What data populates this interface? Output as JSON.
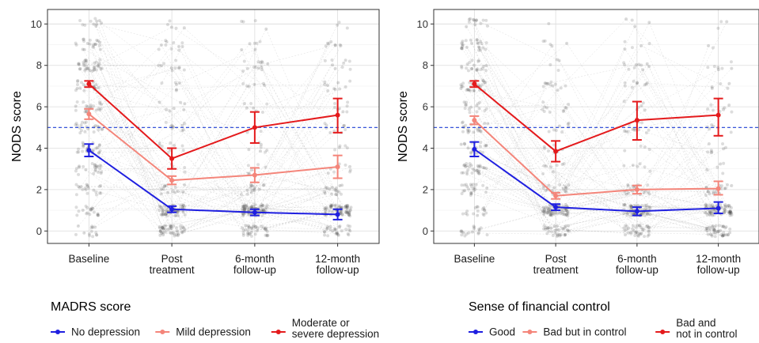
{
  "chart_data": [
    {
      "type": "line",
      "ylabel": "NODS score",
      "xlabel": "",
      "categories": [
        "Baseline",
        "Post\ntreatment",
        "6-month\nfollow-up",
        "12-month\nfollow-up"
      ],
      "ylim": [
        -0.6,
        10.7
      ],
      "yticks": [
        0,
        2,
        4,
        6,
        8,
        10
      ],
      "grid": true,
      "reference_line": {
        "y": 5,
        "style": "dashed",
        "color": "#1f3fd6"
      },
      "legend": {
        "title": "MADRS score",
        "position": "bottom"
      },
      "series": [
        {
          "name": "No depression",
          "color": "#1f1fe0",
          "values": [
            3.9,
            1.05,
            0.9,
            0.8
          ],
          "err_low": [
            3.6,
            0.9,
            0.75,
            0.55
          ],
          "err_high": [
            4.2,
            1.2,
            1.05,
            1.05
          ]
        },
        {
          "name": "Mild depression",
          "color": "#f4857a",
          "values": [
            5.65,
            2.45,
            2.7,
            3.1
          ],
          "err_low": [
            5.4,
            2.25,
            2.35,
            2.55
          ],
          "err_high": [
            5.9,
            2.65,
            3.05,
            3.65
          ]
        },
        {
          "name": "Moderate or\nsevere depression",
          "color": "#e41a1c",
          "values": [
            7.1,
            3.5,
            5.0,
            5.6
          ],
          "err_low": [
            6.95,
            3.0,
            4.25,
            4.75
          ],
          "err_high": [
            7.25,
            4.0,
            5.75,
            6.4
          ]
        }
      ]
    },
    {
      "type": "line",
      "ylabel": "NODS score",
      "xlabel": "",
      "categories": [
        "Baseline",
        "Post\ntreatment",
        "6-month\nfollow-up",
        "12-month\nfollow-up"
      ],
      "ylim": [
        -0.6,
        10.7
      ],
      "yticks": [
        0,
        2,
        4,
        6,
        8,
        10
      ],
      "grid": true,
      "reference_line": {
        "y": 5,
        "style": "dashed",
        "color": "#1f3fd6"
      },
      "legend": {
        "title": "Sense of financial control",
        "position": "bottom"
      },
      "series": [
        {
          "name": "Good",
          "color": "#1f1fe0",
          "values": [
            3.95,
            1.15,
            0.95,
            1.1
          ],
          "err_low": [
            3.6,
            1.0,
            0.75,
            0.85
          ],
          "err_high": [
            4.3,
            1.3,
            1.15,
            1.4
          ]
        },
        {
          "name": "Bad but in control",
          "color": "#f4857a",
          "values": [
            5.35,
            1.7,
            2.0,
            2.05
          ],
          "err_low": [
            5.15,
            1.55,
            1.8,
            1.75
          ],
          "err_high": [
            5.55,
            1.85,
            2.2,
            2.4
          ]
        },
        {
          "name": "Bad and\nnot in control",
          "color": "#e41a1c",
          "values": [
            7.1,
            3.85,
            5.35,
            5.6
          ],
          "err_low": [
            6.95,
            3.35,
            4.4,
            4.6
          ],
          "err_high": [
            7.25,
            4.35,
            6.25,
            6.4
          ]
        }
      ]
    }
  ]
}
